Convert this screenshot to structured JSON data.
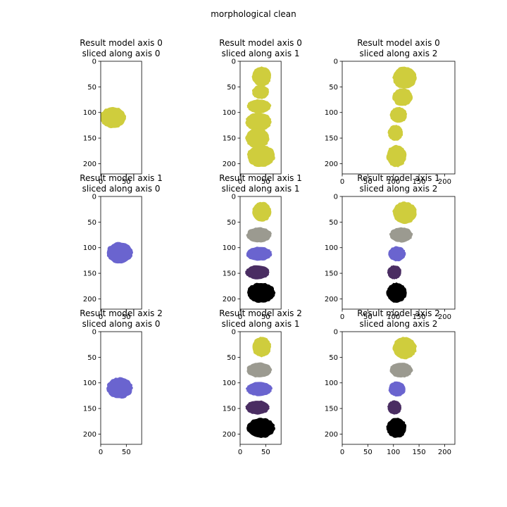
{
  "suptitle": "morphological clean",
  "colors": {
    "yellow": "#cfcd3d",
    "gray": "#9b9a90",
    "blue": "#6a64cf",
    "purple": "#4a2d62",
    "black": "#000000"
  },
  "chart_data": [
    {
      "type": "heatmap",
      "title_line1": "Result model axis 0",
      "title_line2": "sliced along axis 0",
      "xlim": [
        0,
        80
      ],
      "ylim": [
        220,
        0
      ],
      "xticks": [
        0,
        50
      ],
      "yticks": [
        0,
        50,
        100,
        150,
        200
      ],
      "regions": [
        {
          "color": "yellow",
          "blobs": [
            [
              24,
              110,
              26,
              21
            ]
          ]
        }
      ]
    },
    {
      "type": "heatmap",
      "title_line1": "Result model axis 0",
      "title_line2": "sliced along axis 1",
      "xlim": [
        0,
        80
      ],
      "ylim": [
        220,
        0
      ],
      "xticks": [
        0,
        50
      ],
      "yticks": [
        0,
        50,
        100,
        150,
        200
      ],
      "regions": [
        {
          "color": "yellow",
          "blobs": [
            [
              42,
              30,
              19,
              20
            ],
            [
              40,
              60,
              17,
              14
            ],
            [
              37,
              88,
              24,
              14
            ],
            [
              36,
              118,
              26,
              18
            ],
            [
              34,
              150,
              24,
              20
            ],
            [
              41,
              185,
              28,
              22
            ]
          ]
        }
      ]
    },
    {
      "type": "heatmap",
      "title_line1": "Result model axis 0",
      "title_line2": "sliced along axis 2",
      "xlim": [
        0,
        220
      ],
      "ylim": [
        220,
        0
      ],
      "xticks": [
        0,
        50,
        100,
        150,
        200
      ],
      "yticks": [
        0,
        50,
        100,
        150,
        200
      ],
      "regions": [
        {
          "color": "yellow",
          "blobs": [
            [
              122,
              32,
              24,
              22
            ],
            [
              118,
              70,
              20,
              18
            ],
            [
              110,
              105,
              17,
              16
            ],
            [
              104,
              140,
              15,
              16
            ],
            [
              106,
              185,
              20,
              22
            ]
          ]
        }
      ]
    },
    {
      "type": "heatmap",
      "title_line1": "Result model axis 1",
      "title_line2": "sliced along axis 0",
      "xlim": [
        0,
        80
      ],
      "ylim": [
        220,
        0
      ],
      "xticks": [
        0,
        50
      ],
      "yticks": [
        0,
        50,
        100,
        150,
        200
      ],
      "regions": [
        {
          "color": "blue",
          "blobs": [
            [
              37,
              110,
              26,
              21
            ]
          ]
        }
      ]
    },
    {
      "type": "heatmap",
      "title_line1": "Result model axis 1",
      "title_line2": "sliced along axis 1",
      "xlim": [
        0,
        80
      ],
      "ylim": [
        220,
        0
      ],
      "xticks": [
        0,
        50
      ],
      "yticks": [
        0,
        50,
        100,
        150,
        200
      ],
      "regions": [
        {
          "color": "yellow",
          "blobs": [
            [
              42,
              30,
              19,
              20
            ]
          ]
        },
        {
          "color": "gray",
          "blobs": [
            [
              37,
              75,
              25,
              15
            ]
          ]
        },
        {
          "color": "blue",
          "blobs": [
            [
              37,
              112,
              26,
              14
            ]
          ]
        },
        {
          "color": "purple",
          "blobs": [
            [
              34,
              148,
              24,
              14
            ]
          ]
        },
        {
          "color": "black",
          "blobs": [
            [
              41,
              188,
              28,
              20
            ]
          ]
        }
      ]
    },
    {
      "type": "heatmap",
      "title_line1": "Result model axis 1",
      "title_line2": "sliced along axis 2",
      "xlim": [
        0,
        220
      ],
      "ylim": [
        220,
        0
      ],
      "xticks": [
        0,
        50,
        100,
        150,
        200
      ],
      "yticks": [
        0,
        50,
        100,
        150,
        200
      ],
      "regions": [
        {
          "color": "yellow",
          "blobs": [
            [
              122,
              32,
              24,
              22
            ]
          ]
        },
        {
          "color": "gray",
          "blobs": [
            [
              115,
              75,
              23,
              15
            ]
          ]
        },
        {
          "color": "blue",
          "blobs": [
            [
              107,
              112,
              17,
              15
            ]
          ]
        },
        {
          "color": "purple",
          "blobs": [
            [
              102,
              148,
              14,
              14
            ]
          ]
        },
        {
          "color": "black",
          "blobs": [
            [
              106,
              188,
              20,
              20
            ]
          ]
        }
      ]
    },
    {
      "type": "heatmap",
      "title_line1": "Result model axis 2",
      "title_line2": "sliced along axis 0",
      "xlim": [
        0,
        80
      ],
      "ylim": [
        220,
        0
      ],
      "xticks": [
        0,
        50
      ],
      "yticks": [
        0,
        50,
        100,
        150,
        200
      ],
      "regions": [
        {
          "color": "blue",
          "blobs": [
            [
              37,
              110,
              26,
              21
            ]
          ]
        }
      ]
    },
    {
      "type": "heatmap",
      "title_line1": "Result model axis 2",
      "title_line2": "sliced along axis 1",
      "xlim": [
        0,
        80
      ],
      "ylim": [
        220,
        0
      ],
      "xticks": [
        0,
        50
      ],
      "yticks": [
        0,
        50,
        100,
        150,
        200
      ],
      "regions": [
        {
          "color": "yellow",
          "blobs": [
            [
              42,
              30,
              19,
              20
            ]
          ]
        },
        {
          "color": "gray",
          "blobs": [
            [
              37,
              75,
              25,
              15
            ]
          ]
        },
        {
          "color": "blue",
          "blobs": [
            [
              37,
              112,
              26,
              14
            ]
          ]
        },
        {
          "color": "purple",
          "blobs": [
            [
              34,
              148,
              24,
              14
            ]
          ]
        },
        {
          "color": "black",
          "blobs": [
            [
              41,
              188,
              28,
              20
            ]
          ]
        }
      ]
    },
    {
      "type": "heatmap",
      "title_line1": "Result model axis 2",
      "title_line2": "sliced along axis 2",
      "xlim": [
        0,
        220
      ],
      "ylim": [
        220,
        0
      ],
      "xticks": [
        0,
        50,
        100,
        150,
        200
      ],
      "yticks": [
        0,
        50,
        100,
        150,
        200
      ],
      "regions": [
        {
          "color": "yellow",
          "blobs": [
            [
              122,
              32,
              24,
              22
            ]
          ]
        },
        {
          "color": "gray",
          "blobs": [
            [
              115,
              75,
              23,
              15
            ]
          ]
        },
        {
          "color": "blue",
          "blobs": [
            [
              107,
              112,
              17,
              15
            ]
          ]
        },
        {
          "color": "purple",
          "blobs": [
            [
              102,
              148,
              14,
              14
            ]
          ]
        },
        {
          "color": "black",
          "blobs": [
            [
              106,
              188,
              20,
              20
            ]
          ]
        }
      ]
    }
  ]
}
